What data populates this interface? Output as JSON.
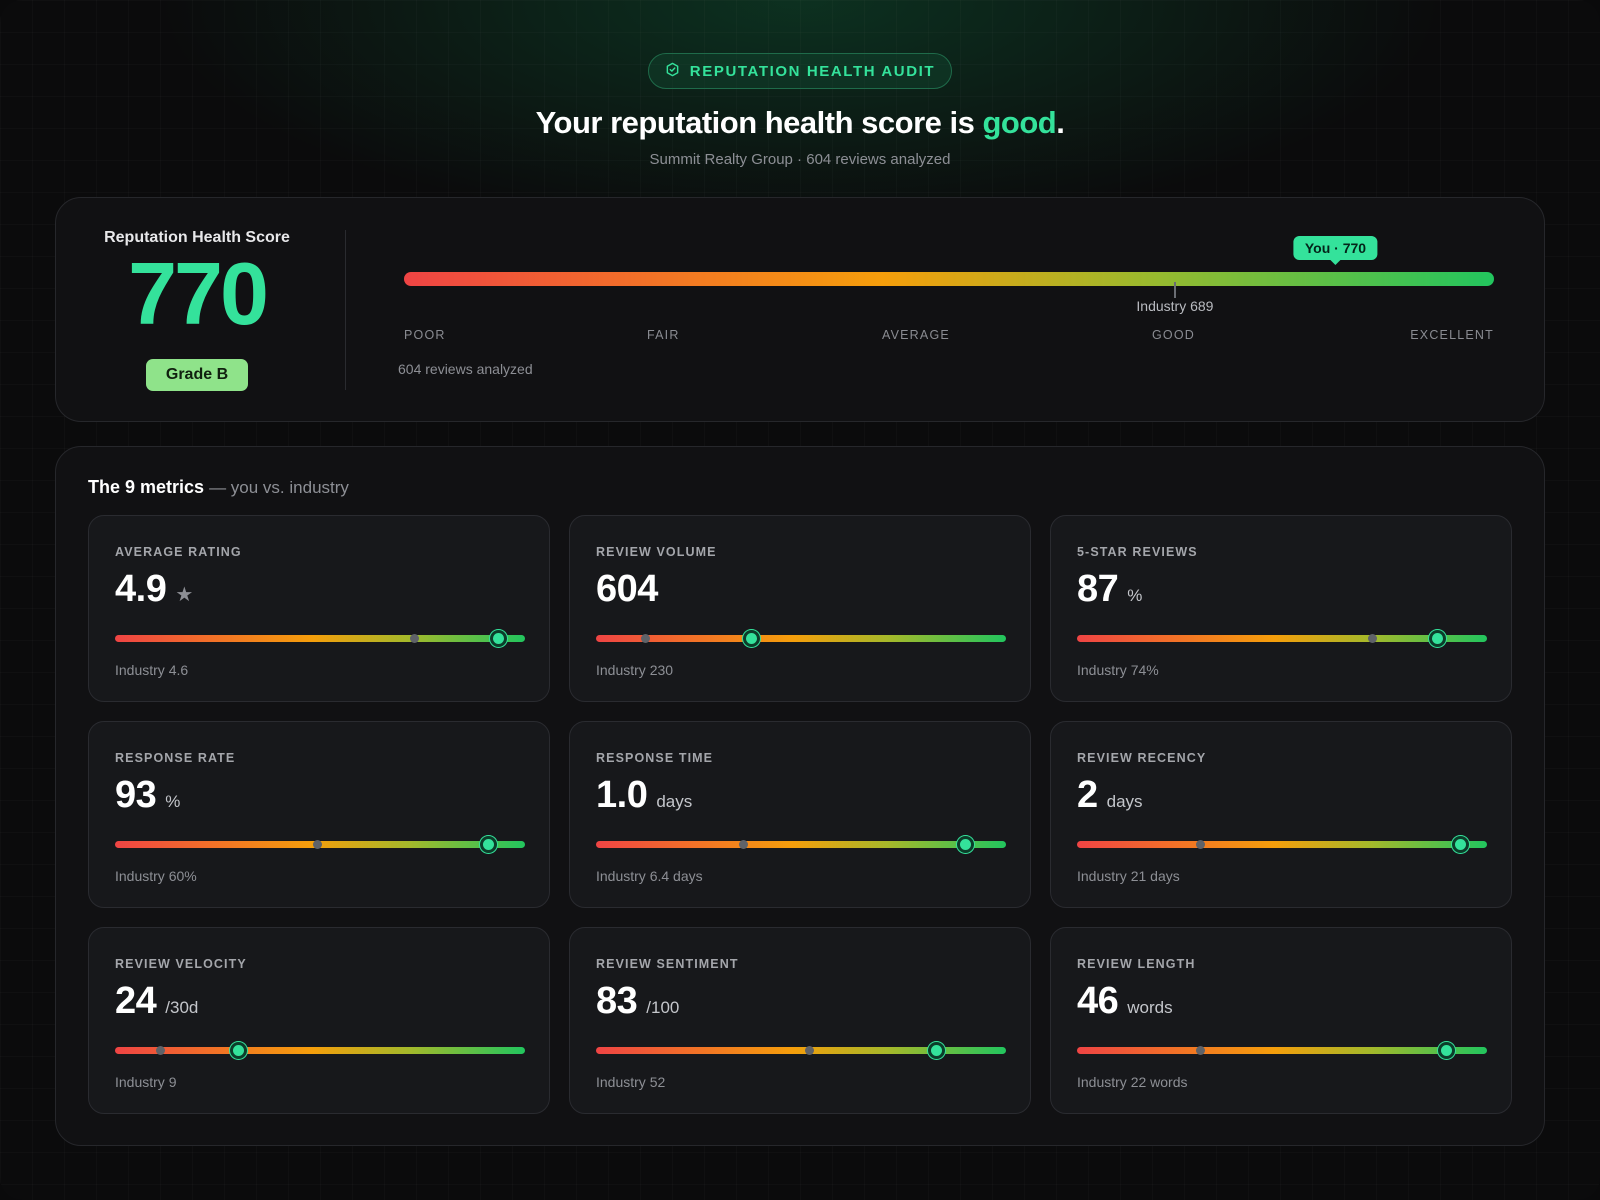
{
  "header": {
    "badge_label": "REPUTATION HEALTH AUDIT",
    "badge_icon": "shield-check-icon",
    "headline_prefix": "Your reputation health score is ",
    "headline_rating": "good",
    "headline_suffix": ".",
    "subline": "Summit Realty Group · 604 reviews analyzed"
  },
  "score": {
    "label": "Reputation Health Score",
    "value": "770",
    "grade": "Grade B",
    "you_tag": "You · 770",
    "you_score": 770,
    "industry_label": "Industry 689",
    "industry_score": 689,
    "scale_min": 300,
    "scale_max": 850,
    "scale_labels": [
      "POOR",
      "FAIR",
      "AVERAGE",
      "GOOD",
      "EXCELLENT"
    ],
    "reviews_note": "604 reviews analyzed"
  },
  "metrics": {
    "title": "The 9 metrics",
    "subtitle": "— you vs. industry",
    "items": [
      {
        "label": "AVERAGE RATING",
        "value": "4.9",
        "unit": "★",
        "industry": "Industry 4.6",
        "you_pos": 0.935,
        "industry_pos": 0.73
      },
      {
        "label": "REVIEW VOLUME",
        "value": "604",
        "unit": "",
        "industry": "Industry 230",
        "you_pos": 0.38,
        "industry_pos": 0.12
      },
      {
        "label": "5-STAR REVIEWS",
        "value": "87",
        "unit": "%",
        "industry": "Industry 74%",
        "you_pos": 0.88,
        "industry_pos": 0.72
      },
      {
        "label": "RESPONSE RATE",
        "value": "93",
        "unit": "%",
        "industry": "Industry 60%",
        "you_pos": 0.91,
        "industry_pos": 0.495
      },
      {
        "label": "RESPONSE TIME",
        "value": "1.0",
        "unit": "days",
        "industry": "Industry 6.4 days",
        "you_pos": 0.9,
        "industry_pos": 0.36
      },
      {
        "label": "REVIEW RECENCY",
        "value": "2",
        "unit": "days",
        "industry": "Industry 21 days",
        "you_pos": 0.935,
        "industry_pos": 0.3
      },
      {
        "label": "REVIEW VELOCITY",
        "value": "24",
        "unit": "/30d",
        "industry": "Industry 9",
        "you_pos": 0.3,
        "industry_pos": 0.11
      },
      {
        "label": "REVIEW SENTIMENT",
        "value": "83",
        "unit": "/100",
        "industry": "Industry 52",
        "you_pos": 0.83,
        "industry_pos": 0.52
      },
      {
        "label": "REVIEW LENGTH",
        "value": "46",
        "unit": "words",
        "industry": "Industry 22 words",
        "you_pos": 0.9,
        "industry_pos": 0.3
      }
    ]
  },
  "colors": {
    "accent": "#34e29b",
    "bad": "#ef4444",
    "mid": "#f59e0b",
    "great": "#22c55e"
  }
}
